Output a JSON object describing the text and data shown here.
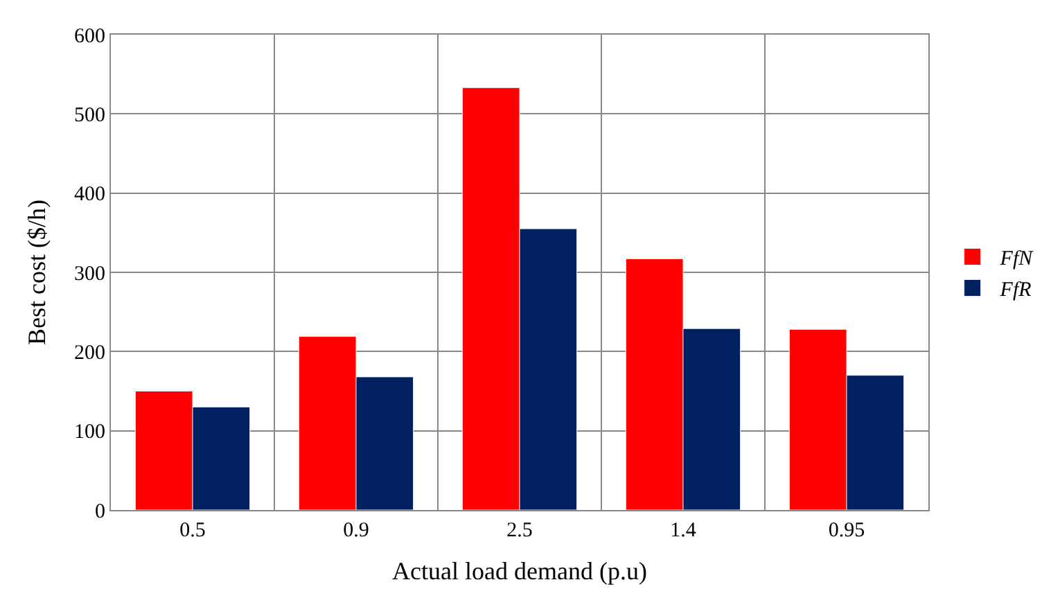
{
  "chart_data": {
    "type": "bar",
    "xlabel": "Actual load demand (p.u)",
    "ylabel": "Best cost ($/h)",
    "categories": [
      "0.5",
      "0.9",
      "2.5",
      "1.4",
      "0.95"
    ],
    "series": [
      {
        "name": "FfN",
        "color": "#ff0000",
        "values": [
          150,
          219,
          533,
          317,
          228
        ]
      },
      {
        "name": "FfR",
        "color": "#002060",
        "values": [
          130,
          168,
          355,
          229,
          170
        ]
      }
    ],
    "ylim": [
      0,
      600
    ],
    "yticks": [
      0,
      100,
      200,
      300,
      400,
      500,
      600
    ],
    "grid": true,
    "legend": "right"
  }
}
